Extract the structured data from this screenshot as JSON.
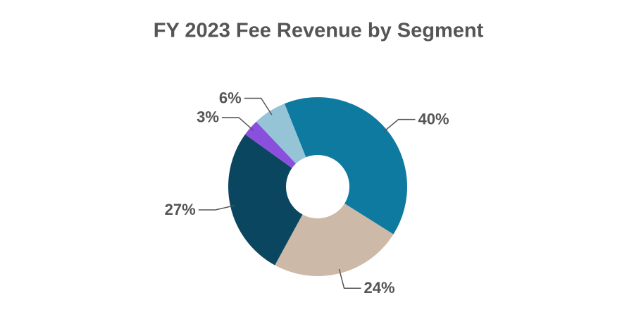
{
  "chart_data": {
    "type": "donut",
    "title": "FY 2023 Fee Revenue by Segment",
    "values": [
      40,
      24,
      27,
      3,
      6
    ],
    "value_labels": [
      "40%",
      "24%",
      "27%",
      "3%",
      "6%"
    ],
    "colors": [
      "#0f7aa0",
      "#cdb9a8",
      "#0b4660",
      "#8a4fdc",
      "#95c4d6"
    ]
  }
}
